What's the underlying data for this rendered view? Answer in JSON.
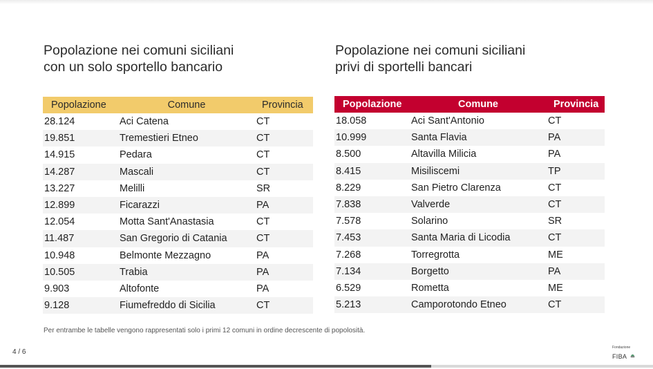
{
  "left": {
    "title_line1": "Popolazione nei comuni siciliani",
    "title_line2": "con un solo sportello bancario",
    "headers": [
      "Popolazione",
      "Comune",
      "Provincia"
    ],
    "header_color": "#f2cb6b",
    "rows": [
      [
        "28.124",
        "Aci Catena",
        "CT"
      ],
      [
        "19.851",
        "Tremestieri Etneo",
        "CT"
      ],
      [
        "14.915",
        "Pedara",
        "CT"
      ],
      [
        "14.287",
        "Mascali",
        "CT"
      ],
      [
        "13.227",
        "Melilli",
        "SR"
      ],
      [
        "12.899",
        "Ficarazzi",
        "PA"
      ],
      [
        "12.054",
        "Motta Sant'Anastasia",
        "CT"
      ],
      [
        "11.487",
        "San Gregorio di Catania",
        "CT"
      ],
      [
        "10.948",
        "Belmonte Mezzagno",
        "PA"
      ],
      [
        "10.505",
        "Trabia",
        "PA"
      ],
      [
        "9.903",
        "Altofonte",
        "PA"
      ],
      [
        "9.128",
        "Fiumefreddo di Sicilia",
        "CT"
      ]
    ]
  },
  "right": {
    "title_line1": "Popolazione nei comuni siciliani",
    "title_line2": "privi di sportelli bancari",
    "headers": [
      "Popolazione",
      "Comune",
      "Provincia"
    ],
    "header_color": "#c3002f",
    "rows": [
      [
        "18.058",
        "Aci Sant'Antonio",
        "CT"
      ],
      [
        "10.999",
        "Santa Flavia",
        "PA"
      ],
      [
        "8.500",
        "Altavilla Milicia",
        "PA"
      ],
      [
        "8.415",
        "Misiliscemi",
        "TP"
      ],
      [
        "8.229",
        "San Pietro Clarenza",
        "CT"
      ],
      [
        "7.838",
        "Valverde",
        "CT"
      ],
      [
        "7.578",
        "Solarino",
        "SR"
      ],
      [
        "7.453",
        "Santa Maria di Licodia",
        "CT"
      ],
      [
        "7.268",
        "Torregrotta",
        "ME"
      ],
      [
        "7.134",
        "Borgetto",
        "PA"
      ],
      [
        "6.529",
        "Rometta",
        "ME"
      ],
      [
        "5.213",
        "Camporotondo Etneo",
        "CT"
      ]
    ]
  },
  "footnote": "Per entrambe le tabelle vengono rappresentati solo i primi 12 comuni in ordine decrescente di popolosità.",
  "page_indicator": "4 / 6",
  "progress": 0.66,
  "logo": {
    "small_text": "Fondazione",
    "big_text": "FIBA",
    "mark_icon": "fiba-leaf-icon",
    "mark_color": "#2e7d4f"
  }
}
